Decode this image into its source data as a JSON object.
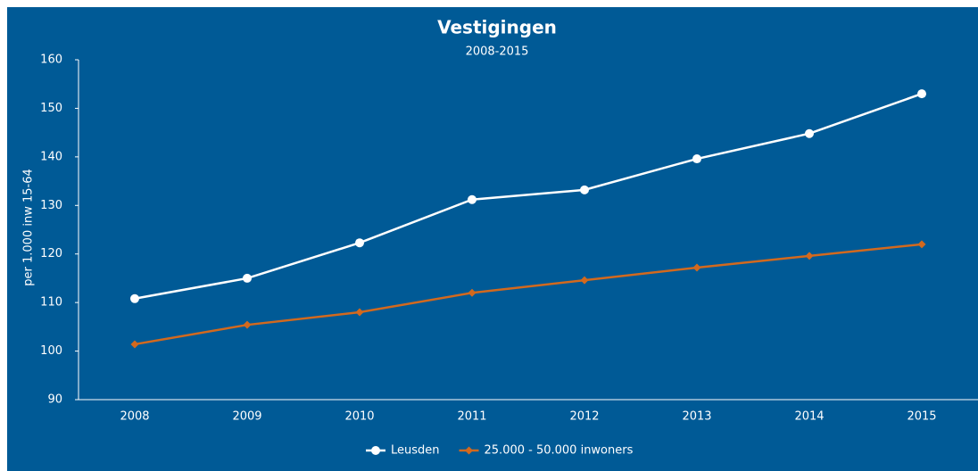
{
  "chart_data": {
    "type": "line",
    "title": "Vestigingen",
    "subtitle": "2008-2015",
    "y_label": "per 1.000 inw 15-64",
    "categories": [
      "2008",
      "2009",
      "2010",
      "2011",
      "2012",
      "2013",
      "2014",
      "2015"
    ],
    "series": [
      {
        "name": "Leusden",
        "color": "#ffffff",
        "marker": "circle",
        "values": [
          110.8,
          115.0,
          122.3,
          131.2,
          133.2,
          139.6,
          144.8,
          153.0
        ]
      },
      {
        "name": "25.000 - 50.000 inwoners",
        "color": "#d2691e",
        "marker": "diamond",
        "values": [
          101.4,
          105.4,
          108.0,
          112.0,
          114.6,
          117.2,
          119.6,
          122.0
        ]
      }
    ],
    "ylim": [
      90,
      160
    ],
    "yticks": [
      90,
      100,
      110,
      120,
      130,
      140,
      150,
      160
    ],
    "grid": false,
    "legend": "bottom"
  }
}
